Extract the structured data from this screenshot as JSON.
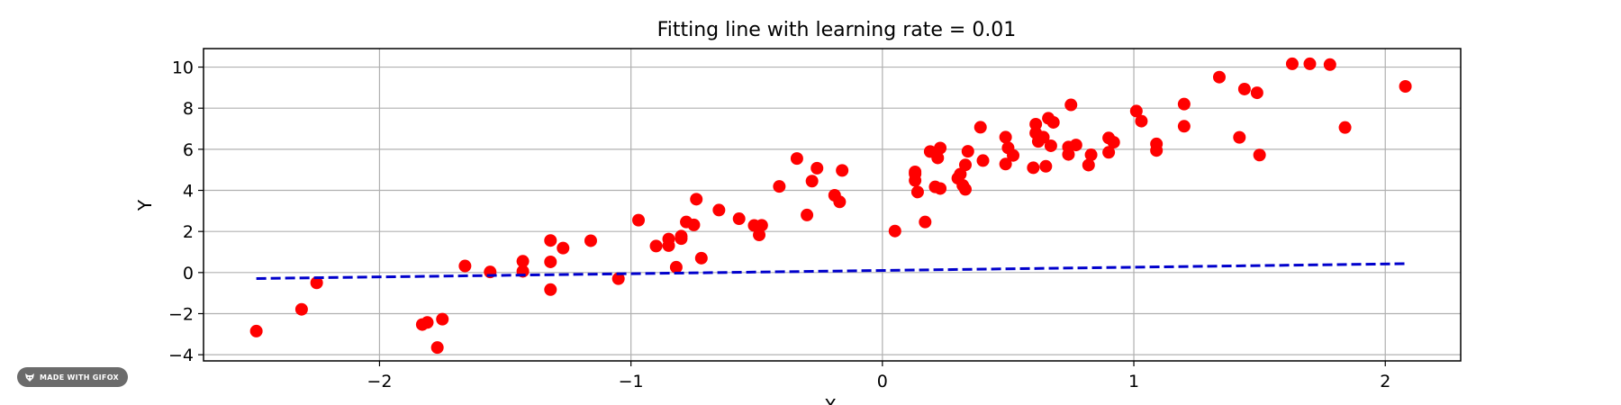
{
  "chart_data": {
    "type": "scatter",
    "title": "Fitting line with learning rate = 0.01",
    "xlabel": "X",
    "ylabel": "Y",
    "xlim": [
      -2.7,
      2.3
    ],
    "ylim": [
      -4.3,
      10.9
    ],
    "xticks": [
      -2,
      -1,
      0,
      1,
      2
    ],
    "xtick_labels": [
      "−2",
      "−1",
      "0",
      "1",
      "2"
    ],
    "yticks": [
      -4,
      -2,
      0,
      2,
      4,
      6,
      8,
      10
    ],
    "ytick_labels": [
      "−4",
      "−2",
      "0",
      "2",
      "4",
      "6",
      "8",
      "10"
    ],
    "grid": true,
    "series": [
      {
        "kind": "scatter",
        "color": "#ff0000",
        "points": [
          [
            -2.49,
            -2.85
          ],
          [
            -2.31,
            -1.79
          ],
          [
            -2.25,
            -0.5
          ],
          [
            -1.83,
            -2.53
          ],
          [
            -1.81,
            -2.43
          ],
          [
            -1.77,
            -3.65
          ],
          [
            -1.75,
            -2.27
          ],
          [
            -1.66,
            0.32
          ],
          [
            -1.56,
            0.03
          ],
          [
            -1.43,
            0.06
          ],
          [
            -1.43,
            0.55
          ],
          [
            -1.32,
            -0.83
          ],
          [
            -1.32,
            1.56
          ],
          [
            -1.32,
            0.52
          ],
          [
            -1.27,
            1.19
          ],
          [
            -1.16,
            1.55
          ],
          [
            -1.05,
            -0.3
          ],
          [
            -0.97,
            2.55
          ],
          [
            -0.9,
            1.29
          ],
          [
            -0.85,
            1.31
          ],
          [
            -0.85,
            1.63
          ],
          [
            -0.82,
            0.26
          ],
          [
            -0.8,
            1.77
          ],
          [
            -0.8,
            1.65
          ],
          [
            -0.78,
            2.46
          ],
          [
            -0.75,
            2.32
          ],
          [
            -0.74,
            3.57
          ],
          [
            -0.72,
            0.7
          ],
          [
            -0.65,
            3.04
          ],
          [
            -0.57,
            2.62
          ],
          [
            -0.51,
            2.29
          ],
          [
            -0.49,
            1.83
          ],
          [
            -0.48,
            2.3
          ],
          [
            -0.41,
            4.19
          ],
          [
            -0.34,
            5.55
          ],
          [
            -0.3,
            2.8
          ],
          [
            -0.28,
            4.45
          ],
          [
            -0.26,
            5.08
          ],
          [
            -0.19,
            3.76
          ],
          [
            -0.17,
            3.44
          ],
          [
            -0.16,
            4.97
          ],
          [
            0.05,
            2.02
          ],
          [
            0.13,
            4.8
          ],
          [
            0.13,
            4.9
          ],
          [
            0.13,
            4.48
          ],
          [
            0.14,
            3.92
          ],
          [
            0.17,
            2.46
          ],
          [
            0.19,
            5.89
          ],
          [
            0.21,
            4.17
          ],
          [
            0.22,
            5.58
          ],
          [
            0.23,
            6.06
          ],
          [
            0.23,
            4.09
          ],
          [
            0.3,
            4.59
          ],
          [
            0.31,
            4.79
          ],
          [
            0.32,
            4.24
          ],
          [
            0.33,
            5.24
          ],
          [
            0.33,
            4.05
          ],
          [
            0.34,
            5.9
          ],
          [
            0.39,
            7.07
          ],
          [
            0.4,
            5.45
          ],
          [
            0.49,
            5.28
          ],
          [
            0.49,
            6.59
          ],
          [
            0.5,
            6.07
          ],
          [
            0.52,
            5.7
          ],
          [
            0.6,
            5.1
          ],
          [
            0.61,
            6.79
          ],
          [
            0.61,
            7.22
          ],
          [
            0.62,
            6.38
          ],
          [
            0.64,
            6.59
          ],
          [
            0.65,
            5.17
          ],
          [
            0.66,
            7.51
          ],
          [
            0.67,
            6.17
          ],
          [
            0.68,
            7.31
          ],
          [
            0.74,
            5.75
          ],
          [
            0.74,
            6.11
          ],
          [
            0.75,
            8.16
          ],
          [
            0.77,
            6.21
          ],
          [
            0.82,
            5.23
          ],
          [
            0.83,
            5.73
          ],
          [
            0.9,
            6.55
          ],
          [
            0.9,
            5.85
          ],
          [
            0.92,
            6.34
          ],
          [
            1.01,
            7.86
          ],
          [
            1.03,
            7.37
          ],
          [
            1.09,
            6.26
          ],
          [
            1.09,
            5.94
          ],
          [
            1.2,
            7.12
          ],
          [
            1.2,
            8.2
          ],
          [
            1.34,
            9.51
          ],
          [
            1.42,
            6.58
          ],
          [
            1.44,
            8.93
          ],
          [
            1.49,
            8.75
          ],
          [
            1.5,
            5.72
          ],
          [
            1.63,
            10.16
          ],
          [
            1.7,
            10.16
          ],
          [
            1.78,
            10.12
          ],
          [
            1.84,
            7.06
          ],
          [
            2.08,
            9.06
          ]
        ]
      },
      {
        "kind": "line",
        "style": "dashed",
        "color": "#0000cc",
        "points": [
          [
            -2.49,
            -0.29
          ],
          [
            2.08,
            0.43
          ]
        ]
      }
    ]
  },
  "watermark": {
    "text": "MADE WITH GIFOX"
  }
}
